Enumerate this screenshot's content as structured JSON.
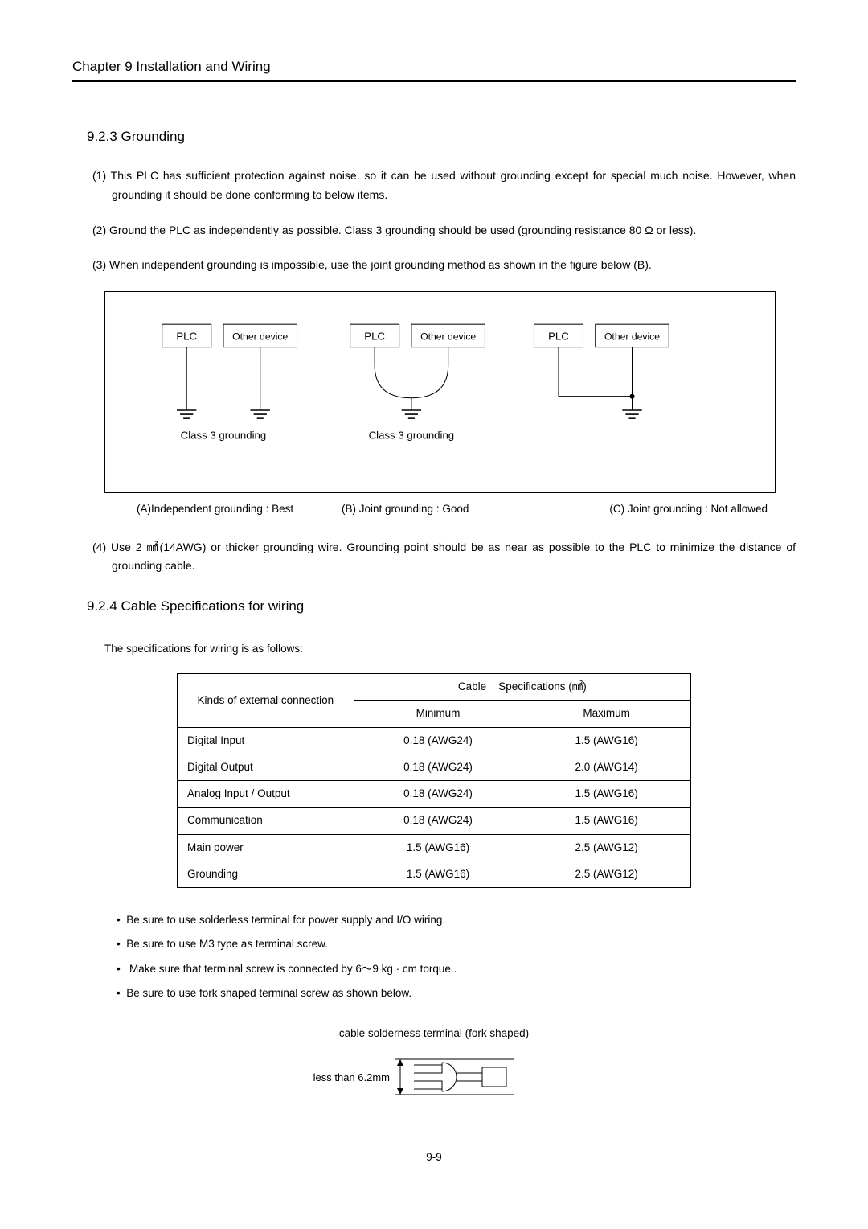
{
  "chapter_header": "Chapter 9 Installation and Wiring",
  "section1": {
    "num_title": "9.2.3 Grounding",
    "p1_prefix": "(1) ",
    "p1": "This PLC has sufficient protection against noise, so it can be used without grounding except for special much noise. However, when grounding it should be done conforming to below items.",
    "p2_prefix": "(2) ",
    "p2": "Ground the PLC as independently as possible. Class 3 grounding should be used (grounding resistance 80 Ω or less).",
    "p3_prefix": "(3) ",
    "p3": "When independent grounding is impossible, use the joint grounding method as shown in the figure below (B).",
    "p4_prefix": "(4) ",
    "p4a": "Use 2 ",
    "p4_unit": "㎟",
    "p4b": "(14AWG) or thicker grounding wire. Grounding point should be as near as possible to the PLC to minimize the distance of grounding cable."
  },
  "diagram": {
    "plc": "PLC",
    "other": "Other device",
    "class3": "Class 3 grounding",
    "capA": "(A)Independent grounding : Best",
    "capB": "(B) Joint grounding : Good",
    "capC": "(C) Joint grounding : Not allowed",
    "box_stroke": "#000000",
    "box_fill": "#ffffff",
    "text_color": "#000000",
    "line_color": "#000000"
  },
  "section2": {
    "num_title": "9.2.4 Cable Specifications for wiring",
    "intro": "The specifications for wiring is as follows:"
  },
  "table": {
    "h_kinds": "Kinds of external connection",
    "h_cable_prefix": "Cable",
    "h_cable_suffix": "Specifications (㎟)",
    "h_min": "Minimum",
    "h_max": "Maximum",
    "rows": [
      {
        "k": "Digital Input",
        "min": "0.18 (AWG24)",
        "max": "1.5 (AWG16)"
      },
      {
        "k": "Digital Output",
        "min": "0.18 (AWG24)",
        "max": "2.0 (AWG14)"
      },
      {
        "k": "Analog Input / Output",
        "min": "0.18 (AWG24)",
        "max": "1.5 (AWG16)"
      },
      {
        "k": "Communication",
        "min": "0.18 (AWG24)",
        "max": "1.5 (AWG16)"
      },
      {
        "k": "Main power",
        "min": "1.5 (AWG16)",
        "max": "2.5 (AWG12)"
      },
      {
        "k": "Grounding",
        "min": "1.5 (AWG16)",
        "max": "2.5 (AWG12)"
      }
    ]
  },
  "notes": {
    "n1": "Be sure to use solderless terminal for power supply and I/O wiring.",
    "n2": "Be sure to use M3 type as terminal screw.",
    "n3a": "Make sure that terminal screw is connected by 6～9 ",
    "n3_unit": "kg · cm",
    "n3b": " torque..",
    "n4": "Be sure to use fork shaped terminal screw as shown below."
  },
  "terminal": {
    "caption": "cable solderness terminal (fork shaped)",
    "label": "less than 6.2mm"
  },
  "pagenum": "9-9"
}
